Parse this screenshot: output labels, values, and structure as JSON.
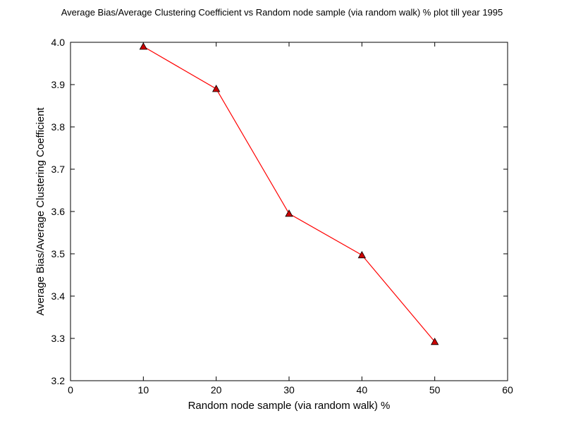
{
  "chart_data": {
    "type": "line",
    "title": "Average Bias/Average Clustering Coefficient vs Random node sample (via random walk) % plot till year 1995",
    "xlabel": "Random node sample (via random walk) %",
    "ylabel": "Average Bias/Average Clustering Coefficient",
    "xlim": [
      0,
      60
    ],
    "ylim": [
      3.2,
      4.0
    ],
    "xticks": [
      "0",
      "10",
      "20",
      "30",
      "40",
      "50",
      "60"
    ],
    "yticks": [
      "3.2",
      "3.3",
      "3.4",
      "3.5",
      "3.6",
      "3.7",
      "3.8",
      "3.9",
      "4.0"
    ],
    "grid": false,
    "series": [
      {
        "x": [
          10,
          20,
          30,
          40,
          50
        ],
        "y": [
          3.99,
          3.89,
          3.595,
          3.497,
          3.292
        ],
        "color": "#ff0000",
        "marker": "triangle-up",
        "marker_fill": "#cc0000"
      }
    ]
  }
}
